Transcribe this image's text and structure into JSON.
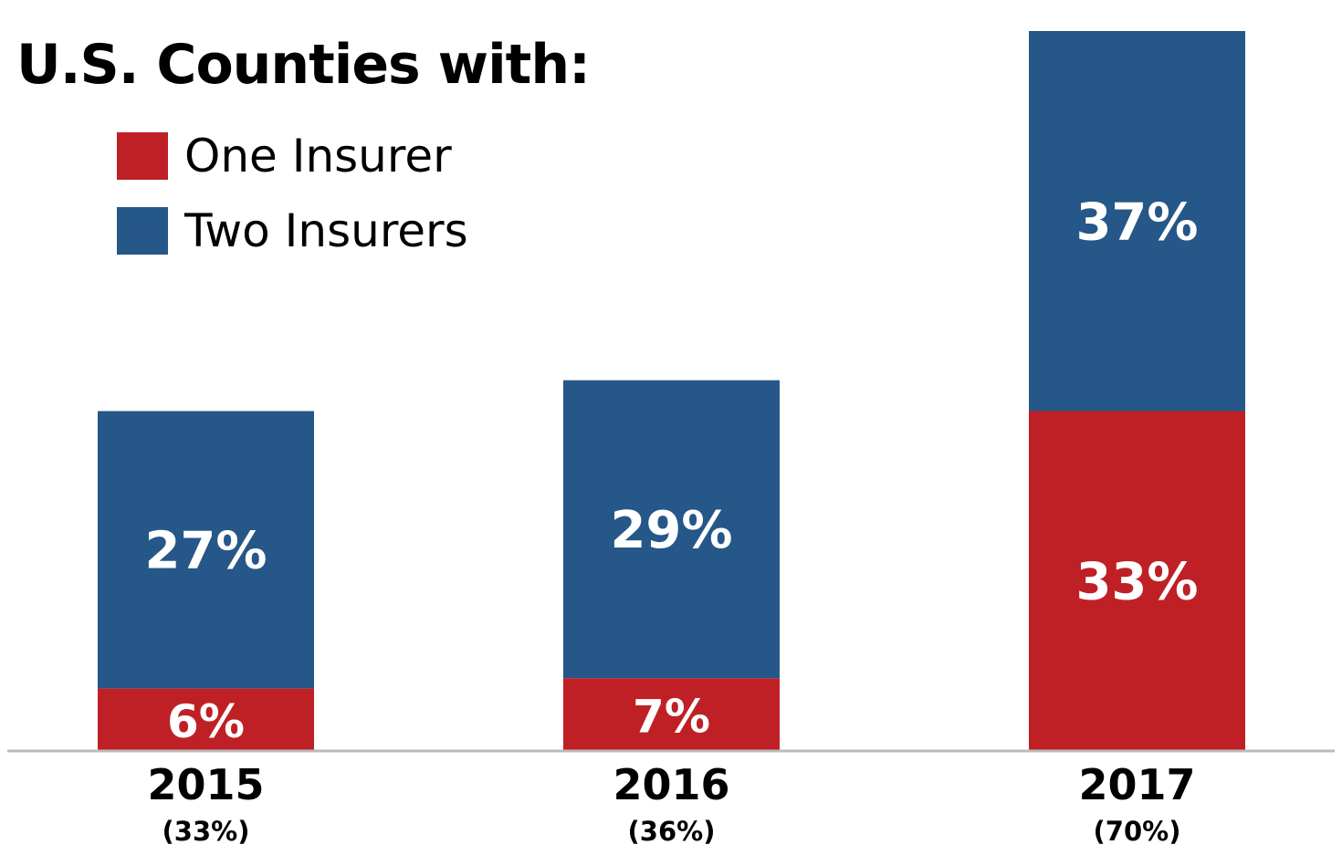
{
  "chart_data": {
    "type": "bar",
    "stacked": true,
    "title": "U.S. Counties with:",
    "categories": [
      "2015",
      "2016",
      "2017"
    ],
    "category_totals": [
      "(33%)",
      "(36%)",
      "(70%)"
    ],
    "series": [
      {
        "name": "One Insurer",
        "color": "#bf2026",
        "values": [
          6,
          7,
          33
        ],
        "labels": [
          "6%",
          "7%",
          "33%"
        ]
      },
      {
        "name": "Two Insurers",
        "color": "#255788",
        "values": [
          27,
          29,
          37
        ],
        "labels": [
          "27%",
          "29%",
          "37%"
        ]
      }
    ],
    "ylim": [
      0,
      70
    ],
    "legend_position": "top-left",
    "grid": false,
    "baseline_color": "#bbbbbb"
  }
}
